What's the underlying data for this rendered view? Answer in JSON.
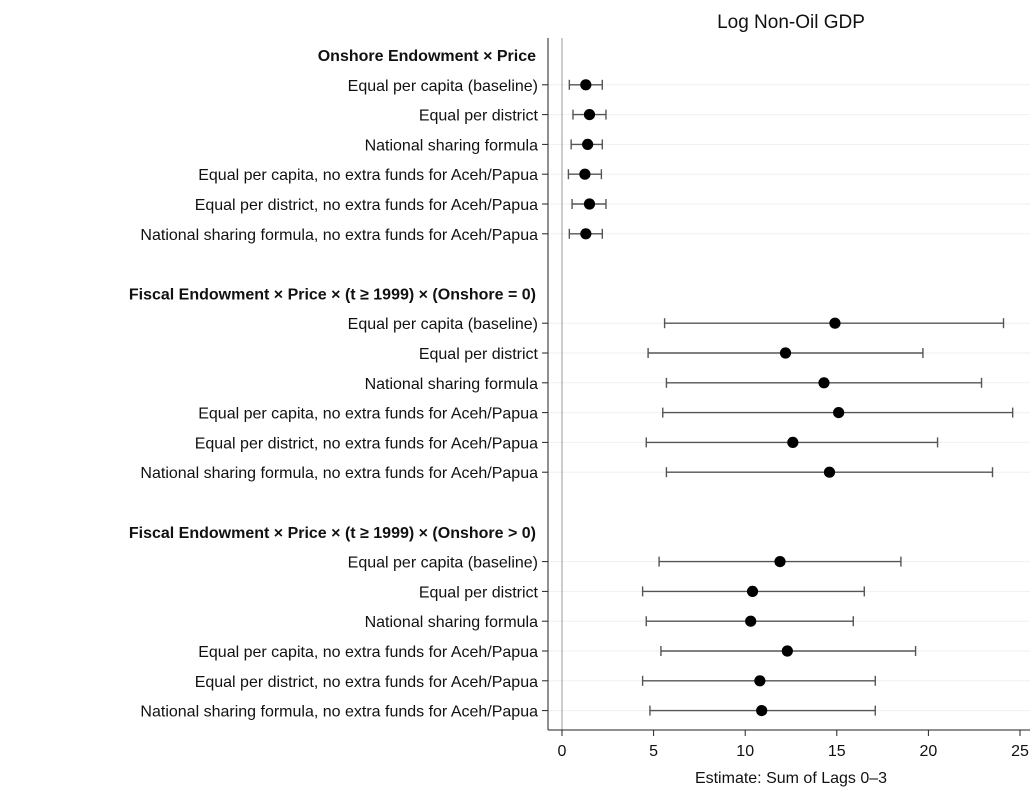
{
  "chart_data": {
    "type": "scatter",
    "subtype": "coefficient-plot-with-confidence-intervals",
    "title": "Log Non-Oil GDP",
    "xlabel": "Estimate: Sum of Lags 0–3",
    "ylabel": "",
    "xlim": [
      0,
      25
    ],
    "xticks": [
      0,
      5,
      10,
      15,
      20,
      25
    ],
    "reference_line_x": 0,
    "grid": "horizontal",
    "legend": "none",
    "colors": {
      "point": "#000000",
      "interval": "#555555",
      "grid": "#eef0f2",
      "reference_line": "#9a9a9a"
    },
    "groups": [
      {
        "label": "Onshore Endowment × Price",
        "rows": [
          {
            "label": "Equal per capita (baseline)",
            "estimate": 1.3,
            "ci_low": 0.4,
            "ci_high": 2.2
          },
          {
            "label": "Equal per district",
            "estimate": 1.5,
            "ci_low": 0.6,
            "ci_high": 2.4
          },
          {
            "label": "National sharing formula",
            "estimate": 1.4,
            "ci_low": 0.5,
            "ci_high": 2.2
          },
          {
            "label": "Equal per capita, no extra funds for Aceh/Papua",
            "estimate": 1.25,
            "ci_low": 0.35,
            "ci_high": 2.15
          },
          {
            "label": "Equal per district, no extra funds for Aceh/Papua",
            "estimate": 1.5,
            "ci_low": 0.55,
            "ci_high": 2.4
          },
          {
            "label": "National sharing formula, no extra funds for Aceh/Papua",
            "estimate": 1.3,
            "ci_low": 0.4,
            "ci_high": 2.2
          }
        ]
      },
      {
        "label": "Fiscal Endowment × Price × (t ≥ 1999) × (Onshore = 0)",
        "rows": [
          {
            "label": "Equal per capita (baseline)",
            "estimate": 14.9,
            "ci_low": 5.6,
            "ci_high": 24.1
          },
          {
            "label": "Equal per district",
            "estimate": 12.2,
            "ci_low": 4.7,
            "ci_high": 19.7
          },
          {
            "label": "National sharing formula",
            "estimate": 14.3,
            "ci_low": 5.7,
            "ci_high": 22.9
          },
          {
            "label": "Equal per capita, no extra funds for Aceh/Papua",
            "estimate": 15.1,
            "ci_low": 5.5,
            "ci_high": 24.6
          },
          {
            "label": "Equal per district, no extra funds for Aceh/Papua",
            "estimate": 12.6,
            "ci_low": 4.6,
            "ci_high": 20.5
          },
          {
            "label": "National sharing formula, no extra funds for Aceh/Papua",
            "estimate": 14.6,
            "ci_low": 5.7,
            "ci_high": 23.5
          }
        ]
      },
      {
        "label": "Fiscal Endowment × Price × (t ≥ 1999) × (Onshore > 0)",
        "rows": [
          {
            "label": "Equal per capita (baseline)",
            "estimate": 11.9,
            "ci_low": 5.3,
            "ci_high": 18.5
          },
          {
            "label": "Equal per district",
            "estimate": 10.4,
            "ci_low": 4.4,
            "ci_high": 16.5
          },
          {
            "label": "National sharing formula",
            "estimate": 10.3,
            "ci_low": 4.6,
            "ci_high": 15.9
          },
          {
            "label": "Equal per capita, no extra funds for Aceh/Papua",
            "estimate": 12.3,
            "ci_low": 5.4,
            "ci_high": 19.3
          },
          {
            "label": "Equal per district, no extra funds for Aceh/Papua",
            "estimate": 10.8,
            "ci_low": 4.4,
            "ci_high": 17.1
          },
          {
            "label": "National sharing formula, no extra funds for Aceh/Papua",
            "estimate": 10.9,
            "ci_low": 4.8,
            "ci_high": 17.1
          }
        ]
      }
    ]
  }
}
